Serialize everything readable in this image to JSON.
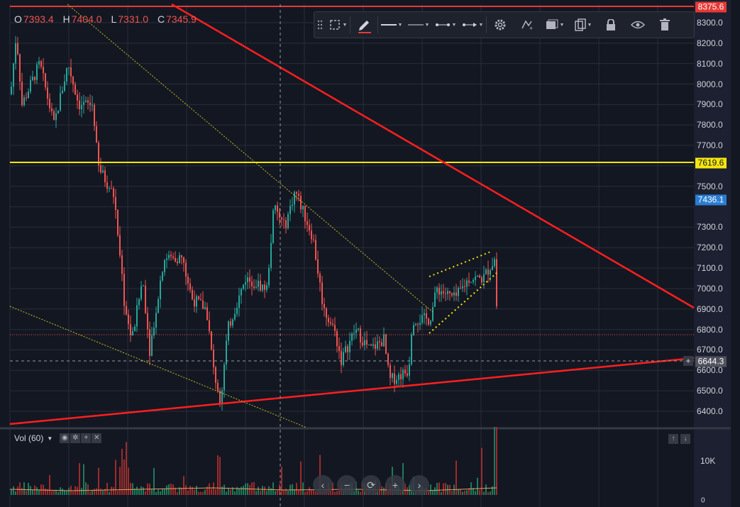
{
  "ohlc": {
    "open_key": "O",
    "open": "7393.4",
    "high_key": "H",
    "high": "7404.0",
    "low_key": "L",
    "low": "7331.0",
    "close_key": "C",
    "close": "7345.9"
  },
  "toolbar": {
    "items": [
      "drag-handle-icon",
      "select-rect-icon",
      "pencil-icon",
      "line-style-solid-icon",
      "line-style-dashed-icon",
      "line-dots-icon",
      "line-arrow-icon",
      "gear-icon",
      "clone-drawing-icon",
      "layer-icon",
      "copy-icon",
      "lock-icon",
      "eye-icon",
      "trash-icon"
    ]
  },
  "price_axis": {
    "ticks": [
      "8300.0",
      "8200.0",
      "8100.0",
      "8000.0",
      "7900.0",
      "7800.0",
      "7700.0",
      "7500.0",
      "7300.0",
      "7200.0",
      "7100.0",
      "7000.0",
      "6900.0",
      "6800.0",
      "6700.0",
      "6600.0",
      "6500.0",
      "6400.0"
    ],
    "tags": {
      "top": {
        "text": "8375.6",
        "bg": "#e53935",
        "fg": "#ffffff"
      },
      "yellow": {
        "text": "7619.6",
        "bg": "#f5e50f",
        "fg": "#131722"
      },
      "current": {
        "text": "7436.1",
        "bg": "#2a7dd1",
        "fg": "#ffffff"
      },
      "crosshair": {
        "text": "6644.3",
        "bg": "#50535e",
        "fg": "#ffffff"
      }
    }
  },
  "volume": {
    "label": "Vol (60)",
    "dropdown_arrow": "▼",
    "icons": [
      "eye-icon",
      "gear-icon",
      "plus-icon",
      "close-icon"
    ],
    "axis_tick": "10K",
    "axis_zero": "0"
  },
  "nav": {
    "left": "‹",
    "zoom_out": "−",
    "reset": "⟳",
    "zoom_in": "+",
    "right": "›"
  },
  "pane_buttons": {
    "up": "↑",
    "down": "↓"
  },
  "crosshair_add": "+",
  "colors": {
    "background": "#131722",
    "grid": "#2a2e39",
    "up_candle": "#26a69a",
    "down_candle": "#ef5350",
    "trend_red": "#ff1f1f",
    "level_yellow": "#f5e50f"
  }
}
